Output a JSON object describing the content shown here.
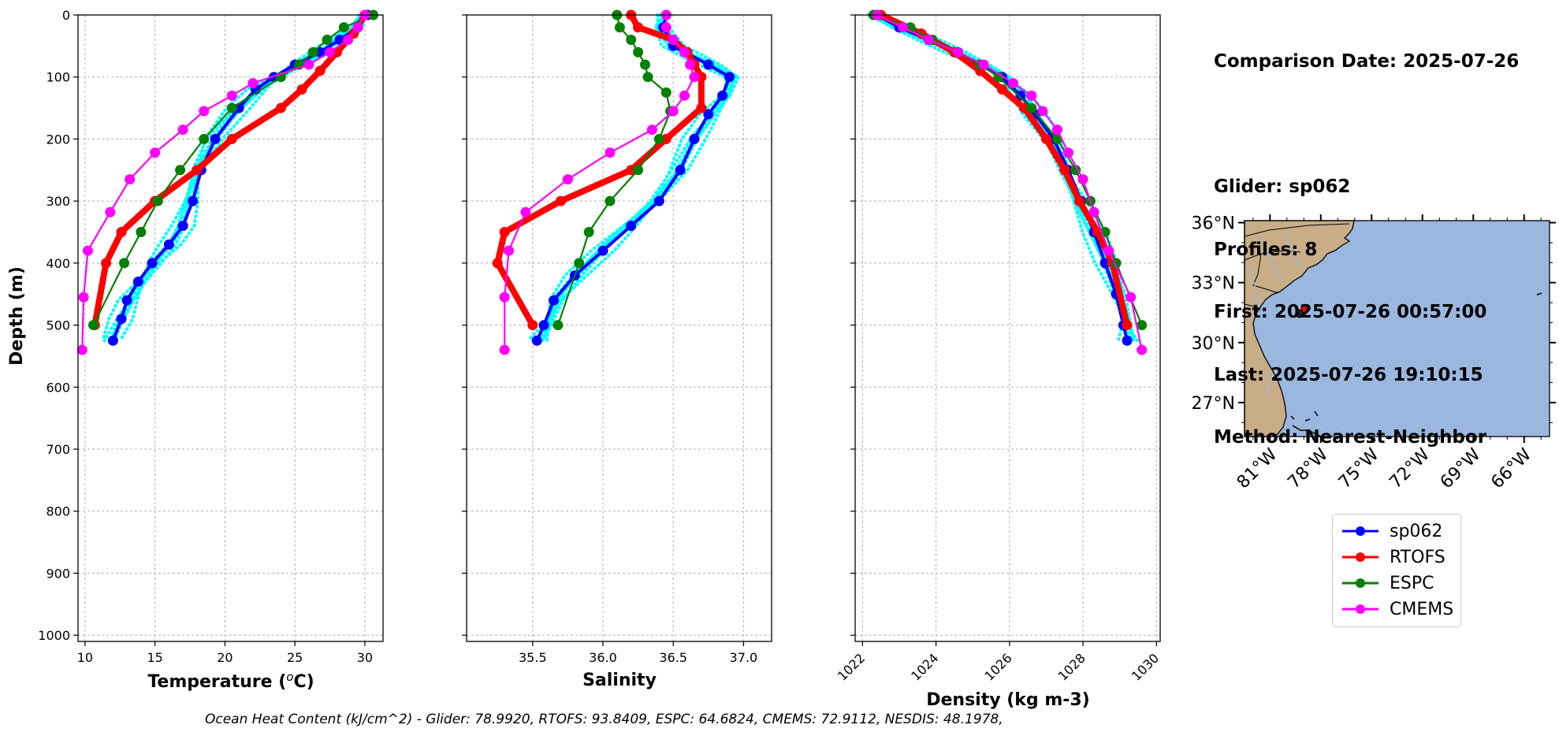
{
  "info": {
    "comparison_date": "Comparison Date: 2025-07-26",
    "glider": "Glider: sp062",
    "profiles": "Profiles: 8",
    "first": "First: 2025-07-26 00:57:00",
    "last": "Last: 2025-07-26 19:10:15",
    "method": "Method: Nearest-Neighbor"
  },
  "footer": {
    "ohc_text": "Ocean Heat Content (kJ/cm^2) - Glider: 78.9920,  RTOFS: 93.8409,  ESPC: 64.6824,  CMEMS: 72.9112,  NESDIS: 48.1978,"
  },
  "colors": {
    "glider": "#0000ff",
    "glider_profiles": "#00ffff",
    "rtofs": "#ff0000",
    "espc": "#008000",
    "cmems": "#ff00ff",
    "land": "#c8ad86",
    "ocean": "#9ab7e0"
  },
  "legend": [
    {
      "label": "sp062",
      "color": "#0000ff"
    },
    {
      "label": "RTOFS",
      "color": "#ff0000"
    },
    {
      "label": "ESPC",
      "color": "#008000"
    },
    {
      "label": "CMEMS",
      "color": "#ff00ff"
    }
  ],
  "map": {
    "lat_ticks": [
      "36°N",
      "33°N",
      "30°N",
      "27°N"
    ],
    "lon_ticks": [
      "81°W",
      "78°W",
      "75°W",
      "72°W",
      "69°W",
      "66°W"
    ],
    "glider_lon": -77.5,
    "glider_lat": 31.6
  },
  "chart_data": [
    {
      "type": "line",
      "name": "temperature",
      "xlabel": "Temperature (°C)",
      "ylabel": "Depth (m)",
      "xlim": [
        9.5,
        31.3
      ],
      "ylim": [
        1010,
        0
      ],
      "xticks": [
        10,
        15,
        20,
        25,
        30
      ],
      "yticks": [
        0,
        100,
        200,
        300,
        400,
        500,
        600,
        700,
        800,
        900,
        1000
      ],
      "grid": true,
      "series": [
        {
          "name": "sp062",
          "depth": [
            0,
            20,
            40,
            60,
            80,
            100,
            120,
            150,
            200,
            250,
            300,
            340,
            370,
            400,
            430,
            460,
            490,
            525
          ],
          "values": [
            30.2,
            29.5,
            28.2,
            26.8,
            25.0,
            23.5,
            22.2,
            21.0,
            19.3,
            18.3,
            17.7,
            17.0,
            16.0,
            14.8,
            13.8,
            13.0,
            12.6,
            12.0
          ]
        },
        {
          "name": "RTOFS",
          "depth": [
            0,
            30,
            60,
            90,
            120,
            150,
            200,
            250,
            300,
            350,
            400,
            500
          ],
          "values": [
            30.0,
            29.2,
            28.0,
            26.8,
            25.5,
            24.0,
            20.5,
            18.0,
            15.0,
            12.6,
            11.5,
            10.7
          ]
        },
        {
          "name": "ESPC",
          "depth": [
            0,
            20,
            40,
            60,
            80,
            100,
            150,
            200,
            250,
            300,
            350,
            400,
            500
          ],
          "values": [
            30.6,
            28.5,
            27.3,
            26.3,
            25.3,
            24.0,
            20.5,
            18.5,
            16.8,
            15.2,
            14.0,
            12.8,
            10.6
          ]
        },
        {
          "name": "CMEMS",
          "depth": [
            0,
            20,
            40,
            60,
            80,
            110,
            130,
            155,
            185,
            222,
            265,
            318,
            380,
            455,
            540
          ],
          "values": [
            30.0,
            29.5,
            28.8,
            27.5,
            26.0,
            22.0,
            20.5,
            18.5,
            17.0,
            15.0,
            13.2,
            11.8,
            10.2,
            9.9,
            9.8
          ]
        }
      ]
    },
    {
      "type": "line",
      "name": "salinity",
      "xlabel": "Salinity",
      "xlim": [
        35.03,
        37.2
      ],
      "ylim": [
        1010,
        0
      ],
      "xticks": [
        35.5,
        36.0,
        36.5,
        37.0
      ],
      "grid": true,
      "series": [
        {
          "name": "sp062",
          "depth": [
            0,
            20,
            50,
            80,
            100,
            130,
            160,
            200,
            250,
            300,
            340,
            380,
            420,
            460,
            500,
            525
          ],
          "values": [
            36.45,
            36.43,
            36.5,
            36.75,
            36.9,
            36.85,
            36.75,
            36.65,
            36.55,
            36.4,
            36.2,
            36.0,
            35.8,
            35.65,
            35.58,
            35.53
          ]
        },
        {
          "name": "RTOFS",
          "depth": [
            0,
            20,
            40,
            60,
            80,
            100,
            150,
            200,
            250,
            300,
            350,
            400,
            500
          ],
          "values": [
            36.2,
            36.25,
            36.5,
            36.6,
            36.65,
            36.7,
            36.7,
            36.45,
            36.2,
            35.7,
            35.3,
            35.25,
            35.5
          ]
        },
        {
          "name": "ESPC",
          "depth": [
            0,
            20,
            40,
            60,
            80,
            100,
            125,
            155,
            200,
            250,
            300,
            350,
            400,
            500
          ],
          "values": [
            36.1,
            36.12,
            36.2,
            36.25,
            36.3,
            36.32,
            36.45,
            36.48,
            36.4,
            36.25,
            36.05,
            35.9,
            35.83,
            35.68
          ]
        },
        {
          "name": "CMEMS",
          "depth": [
            0,
            20,
            40,
            60,
            80,
            100,
            130,
            155,
            185,
            222,
            265,
            318,
            380,
            455,
            540
          ],
          "values": [
            36.45,
            36.45,
            36.5,
            36.58,
            36.62,
            36.65,
            36.58,
            36.5,
            36.35,
            36.05,
            35.75,
            35.45,
            35.33,
            35.3,
            35.3
          ]
        }
      ]
    },
    {
      "type": "line",
      "name": "density",
      "xlabel": "Density (kg m-3)",
      "xlim": [
        1021.8,
        1030.1
      ],
      "ylim": [
        1010,
        0
      ],
      "xticks": [
        1022,
        1024,
        1026,
        1028,
        1030
      ],
      "grid": true,
      "series": [
        {
          "name": "sp062",
          "depth": [
            0,
            20,
            40,
            60,
            80,
            100,
            130,
            160,
            200,
            250,
            300,
            350,
            400,
            450,
            500,
            525
          ],
          "values": [
            1022.4,
            1023.0,
            1023.8,
            1024.5,
            1025.2,
            1025.8,
            1026.3,
            1026.7,
            1027.2,
            1027.6,
            1027.95,
            1028.3,
            1028.6,
            1028.9,
            1029.1,
            1029.2
          ]
        },
        {
          "name": "RTOFS",
          "depth": [
            0,
            30,
            60,
            90,
            120,
            150,
            200,
            250,
            300,
            350,
            400,
            500
          ],
          "values": [
            1022.5,
            1023.6,
            1024.5,
            1025.2,
            1025.8,
            1026.4,
            1027.0,
            1027.5,
            1027.9,
            1028.4,
            1028.8,
            1029.2
          ]
        },
        {
          "name": "ESPC",
          "depth": [
            0,
            20,
            40,
            60,
            80,
            100,
            150,
            200,
            250,
            300,
            350,
            400,
            500
          ],
          "values": [
            1022.3,
            1023.3,
            1023.9,
            1024.6,
            1025.2,
            1025.7,
            1026.6,
            1027.3,
            1027.8,
            1028.2,
            1028.6,
            1028.9,
            1029.6
          ]
        },
        {
          "name": "CMEMS",
          "depth": [
            0,
            20,
            40,
            60,
            80,
            110,
            130,
            155,
            185,
            222,
            265,
            318,
            380,
            455,
            540
          ],
          "values": [
            1022.4,
            1023.1,
            1023.8,
            1024.6,
            1025.3,
            1026.1,
            1026.6,
            1026.9,
            1027.3,
            1027.6,
            1028.0,
            1028.3,
            1028.7,
            1029.3,
            1029.6
          ]
        }
      ]
    }
  ]
}
